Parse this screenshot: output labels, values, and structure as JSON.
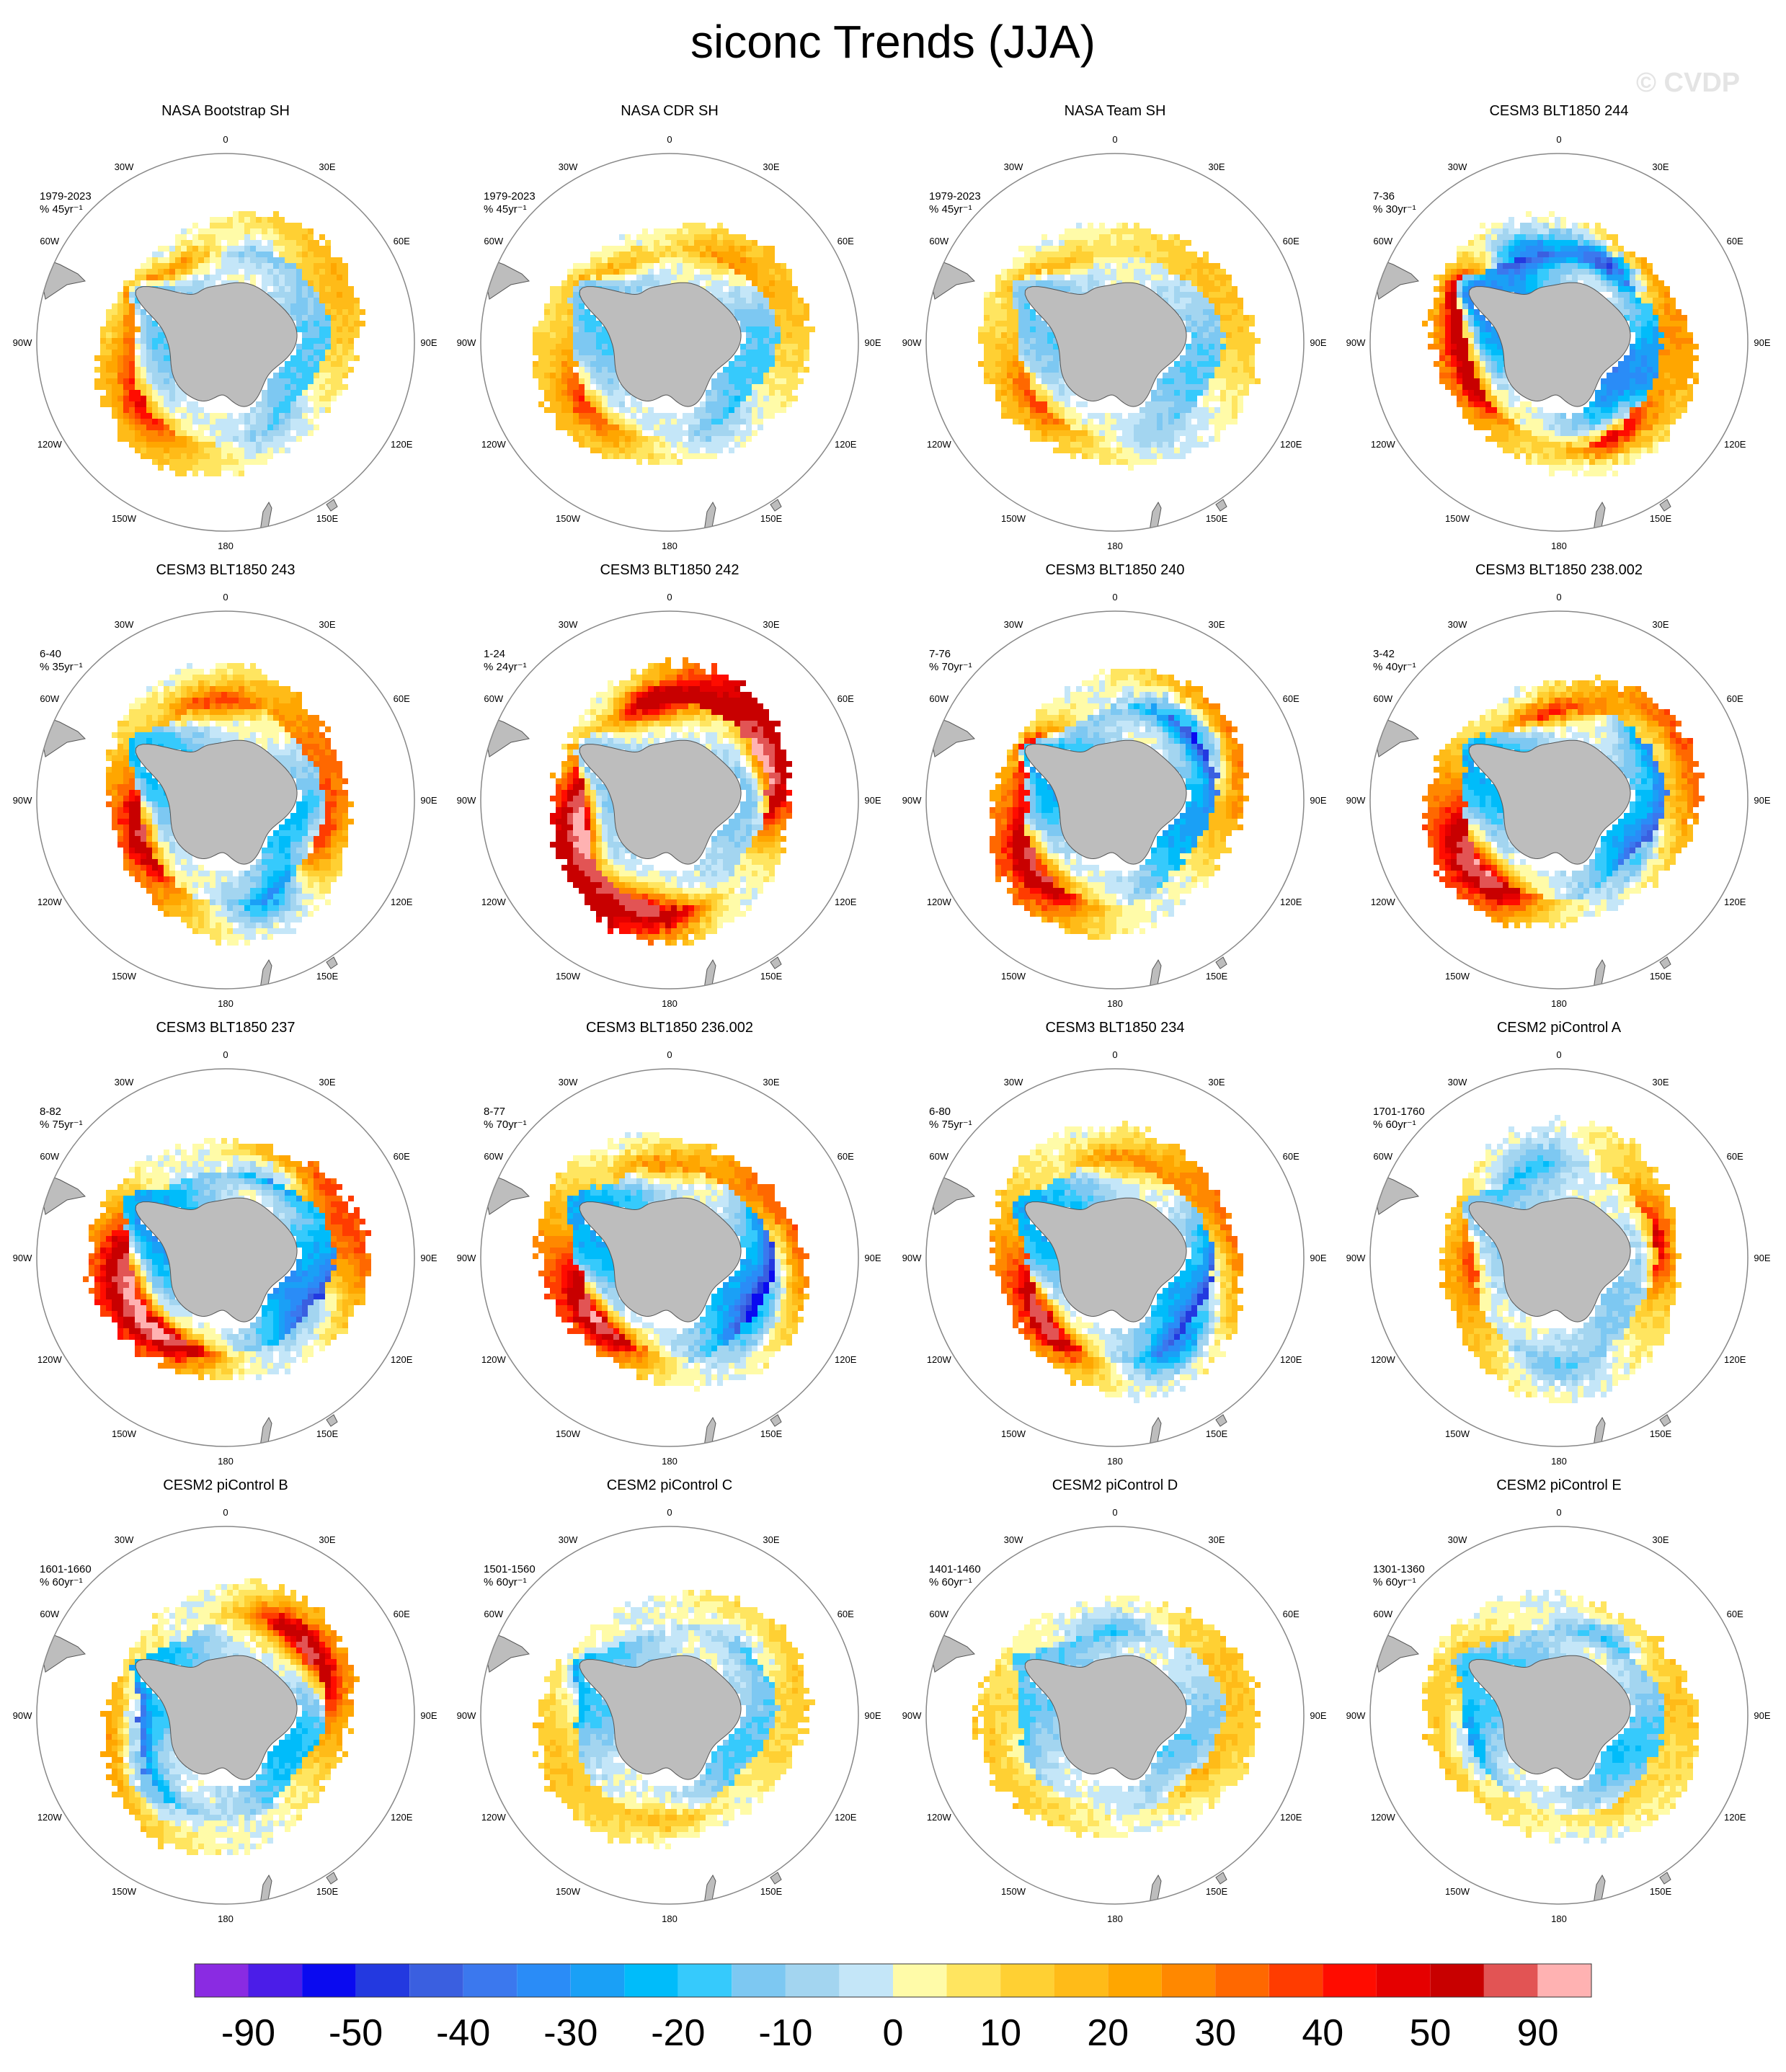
{
  "title": "siconc Trends (JJA)",
  "watermark": "© CVDP",
  "chart_data": {
    "type": "heatmap",
    "title": "siconc Trends (JJA)",
    "projection": "south polar stereographic",
    "longitude_labels": [
      "0",
      "30E",
      "60E",
      "90E",
      "120E",
      "150E",
      "180",
      "150W",
      "120W",
      "90W",
      "60W",
      "30W"
    ],
    "colorbar": {
      "tick_labels": [
        "-90",
        "-50",
        "-40",
        "-30",
        "-20",
        "-10",
        "0",
        "10",
        "20",
        "30",
        "40",
        "50",
        "90"
      ],
      "colors": [
        "#8a2be2",
        "#4b1de8",
        "#0a0af0",
        "#2339e0",
        "#3a5fe0",
        "#3b78ee",
        "#2a8cf7",
        "#1aa0f6",
        "#00bcfa",
        "#36cafc",
        "#7dc8f2",
        "#a3d5f0",
        "#c4e6f8",
        "#fffba8",
        "#ffe560",
        "#ffd033",
        "#ffbb18",
        "#ffa600",
        "#ff8800",
        "#ff6800",
        "#ff3c00",
        "#ff0c00",
        "#e50000",
        "#c80000",
        "#e25454",
        "#ffb2b2"
      ]
    },
    "panels": [
      {
        "name": "NASA Bootstrap SH",
        "period": "1979-2023",
        "units": "% 45yr⁻¹"
      },
      {
        "name": "NASA CDR SH",
        "period": "1979-2023",
        "units": "% 45yr⁻¹"
      },
      {
        "name": "NASA Team SH",
        "period": "1979-2023",
        "units": "% 45yr⁻¹"
      },
      {
        "name": "CESM3 BLT1850 244",
        "period": "7-36",
        "units": "% 30yr⁻¹"
      },
      {
        "name": "CESM3 BLT1850 243",
        "period": "6-40",
        "units": "% 35yr⁻¹"
      },
      {
        "name": "CESM3 BLT1850 242",
        "period": "1-24",
        "units": "% 24yr⁻¹"
      },
      {
        "name": "CESM3 BLT1850 240",
        "period": "7-76",
        "units": "% 70yr⁻¹"
      },
      {
        "name": "CESM3 BLT1850 238.002",
        "period": "3-42",
        "units": "% 40yr⁻¹"
      },
      {
        "name": "CESM3 BLT1850 237",
        "period": "8-82",
        "units": "% 75yr⁻¹"
      },
      {
        "name": "CESM3 BLT1850 236.002",
        "period": "8-77",
        "units": "% 70yr⁻¹"
      },
      {
        "name": "CESM3 BLT1850 234",
        "period": "6-80",
        "units": "% 75yr⁻¹"
      },
      {
        "name": "CESM2 piControl A",
        "period": "1701-1760",
        "units": "% 60yr⁻¹"
      },
      {
        "name": "CESM2 piControl B",
        "period": "1601-1660",
        "units": "% 60yr⁻¹"
      },
      {
        "name": "CESM2 piControl C",
        "period": "1501-1560",
        "units": "% 60yr⁻¹"
      },
      {
        "name": "CESM2 piControl D",
        "period": "1401-1460",
        "units": "% 60yr⁻¹"
      },
      {
        "name": "CESM2 piControl E",
        "period": "1301-1360",
        "units": "% 60yr⁻¹"
      }
    ],
    "panel_patterns": [
      {
        "outer": 15,
        "inner": -14,
        "ringShift": 0.4,
        "blobs": [
          [
            215,
            28
          ],
          [
            120,
            24
          ],
          [
            160,
            18
          ],
          [
            300,
            -10
          ],
          [
            75,
            -16
          ]
        ]
      },
      {
        "outer": 13,
        "inner": -14,
        "ringShift": 0.5,
        "blobs": [
          [
            215,
            24
          ],
          [
            130,
            20
          ],
          [
            60,
            14
          ],
          [
            300,
            -10
          ]
        ]
      },
      {
        "outer": 13,
        "inner": -12,
        "ringShift": 0.5,
        "blobs": [
          [
            215,
            22
          ],
          [
            130,
            18
          ],
          [
            300,
            -8
          ]
        ]
      },
      {
        "outer": 22,
        "inner": -28,
        "ringShift": 1.0,
        "blobs": [
          [
            150,
            48
          ],
          [
            200,
            40
          ],
          [
            300,
            44
          ],
          [
            60,
            -55
          ],
          [
            120,
            -40
          ]
        ]
      },
      {
        "outer": 26,
        "inner": -18,
        "ringShift": 0.8,
        "blobs": [
          [
            200,
            44
          ],
          [
            100,
            36
          ],
          [
            330,
            30
          ],
          [
            300,
            -30
          ]
        ]
      },
      {
        "outer": 48,
        "inner": -10,
        "ringShift": 0.3,
        "blobs": [
          [
            190,
            60
          ],
          [
            100,
            54
          ],
          [
            260,
            46
          ],
          [
            20,
            44
          ]
        ]
      },
      {
        "outer": 26,
        "inner": -22,
        "ringShift": 0.7,
        "blobs": [
          [
            220,
            48
          ],
          [
            150,
            32
          ],
          [
            30,
            -36
          ],
          [
            60,
            -28
          ]
        ]
      },
      {
        "outer": 30,
        "inner": -20,
        "ringShift": 0.7,
        "blobs": [
          [
            220,
            58
          ],
          [
            100,
            38
          ],
          [
            30,
            -28
          ],
          [
            330,
            -24
          ]
        ]
      },
      {
        "outer": 32,
        "inner": -24,
        "ringShift": 0.7,
        "blobs": [
          [
            230,
            58
          ],
          [
            190,
            48
          ],
          [
            60,
            -32
          ],
          [
            330,
            -20
          ]
        ]
      },
      {
        "outer": 30,
        "inner": -22,
        "ringShift": 0.8,
        "blobs": [
          [
            220,
            60
          ],
          [
            100,
            24
          ],
          [
            330,
            -32
          ],
          [
            10,
            -24
          ]
        ]
      },
      {
        "outer": 26,
        "inner": -20,
        "ringShift": 0.9,
        "blobs": [
          [
            220,
            60
          ],
          [
            90,
            24
          ],
          [
            310,
            -34
          ],
          [
            0,
            -22
          ]
        ]
      },
      {
        "outer": 16,
        "inner": -10,
        "ringShift": 1.1,
        "blobs": [
          [
            10,
            32
          ],
          [
            180,
            20
          ],
          [
            110,
            -16
          ],
          [
            260,
            -14
          ]
        ]
      },
      {
        "outer": 20,
        "inner": -18,
        "ringShift": 1.0,
        "blobs": [
          [
            35,
            38
          ],
          [
            60,
            26
          ],
          [
            220,
            -30
          ],
          [
            180,
            -22
          ]
        ]
      },
      {
        "outer": 12,
        "inner": -14,
        "ringShift": 0.9,
        "blobs": [
          [
            270,
            16
          ],
          [
            40,
            -16
          ],
          [
            160,
            -12
          ]
        ]
      },
      {
        "outer": 12,
        "inner": -12,
        "ringShift": 0.9,
        "blobs": [
          [
            320,
            14
          ],
          [
            90,
            -16
          ],
          [
            200,
            -10
          ]
        ]
      },
      {
        "outer": 12,
        "inner": -16,
        "ringShift": 1.0,
        "blobs": [
          [
            60,
            -22
          ],
          [
            200,
            -20
          ],
          [
            300,
            12
          ],
          [
            140,
            10
          ]
        ]
      }
    ]
  }
}
